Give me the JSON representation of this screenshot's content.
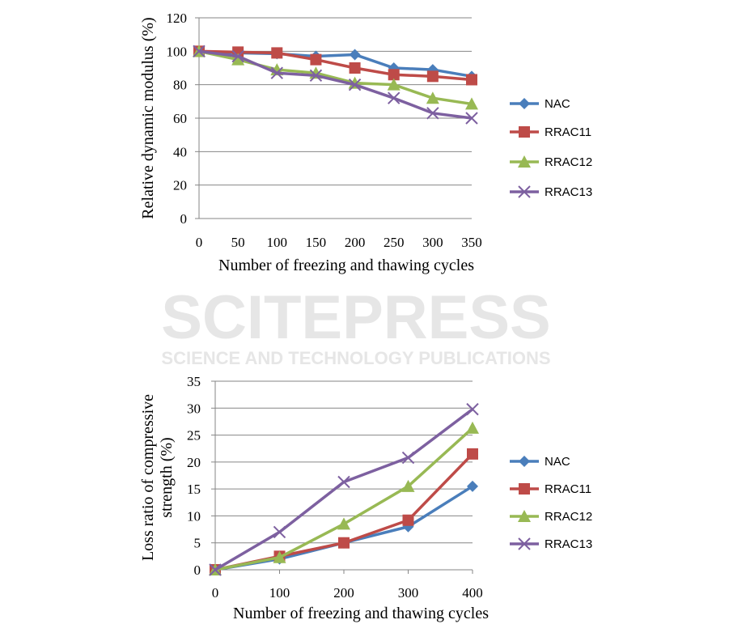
{
  "watermark": {
    "line1": "SCITEPRESS",
    "line2": "SCIENCE AND TECHNOLOGY PUBLICATIONS"
  },
  "colors": {
    "NAC": "#4a7ebb",
    "RRAC11": "#be4b48",
    "RRAC12": "#98b954",
    "RRAC13": "#7d60a0"
  },
  "chart_data": [
    {
      "type": "line",
      "title": "",
      "xlabel": "Number of freezing and thawing cycles",
      "ylabel": "Relative dynamic modulus (%)",
      "x": [
        0,
        50,
        100,
        150,
        200,
        250,
        300,
        350
      ],
      "xlim": [
        0,
        350
      ],
      "ylim": [
        0,
        120
      ],
      "yticks": [
        0,
        20,
        40,
        60,
        80,
        100,
        120
      ],
      "grid": true,
      "legend": "right",
      "series": [
        {
          "name": "NAC",
          "marker": "diamond",
          "values": [
            100,
            99,
            98.5,
            97,
            98,
            90,
            89,
            85
          ]
        },
        {
          "name": "RRAC11",
          "marker": "square",
          "values": [
            100,
            99.5,
            99,
            95,
            90,
            86,
            85,
            83
          ]
        },
        {
          "name": "RRAC12",
          "marker": "triangle",
          "values": [
            100,
            95,
            89,
            87,
            81,
            80,
            72,
            68.5
          ]
        },
        {
          "name": "RRAC13",
          "marker": "x",
          "values": [
            100,
            97,
            87,
            85.5,
            80,
            72,
            63,
            60
          ]
        }
      ]
    },
    {
      "type": "line",
      "title": "",
      "xlabel": "Number of freezing and thawing cycles",
      "ylabel": "Loss ratio of compressive strength (%)",
      "ylabel_lines": [
        "Loss ratio of compressive",
        "strength (%)"
      ],
      "x": [
        0,
        100,
        200,
        300,
        400
      ],
      "xlim": [
        0,
        400
      ],
      "ylim": [
        0,
        35
      ],
      "yticks": [
        0,
        5,
        10,
        15,
        20,
        25,
        30,
        35
      ],
      "grid": true,
      "legend": "right",
      "series": [
        {
          "name": "NAC",
          "marker": "diamond",
          "values": [
            0,
            2,
            5,
            8,
            15.5
          ]
        },
        {
          "name": "RRAC11",
          "marker": "square",
          "values": [
            0,
            2.5,
            5,
            9.2,
            21.5
          ]
        },
        {
          "name": "RRAC12",
          "marker": "triangle",
          "values": [
            0,
            2.3,
            8.5,
            15.5,
            26.3
          ]
        },
        {
          "name": "RRAC13",
          "marker": "x",
          "values": [
            0,
            7,
            16.3,
            20.8,
            29.8
          ]
        }
      ]
    }
  ]
}
